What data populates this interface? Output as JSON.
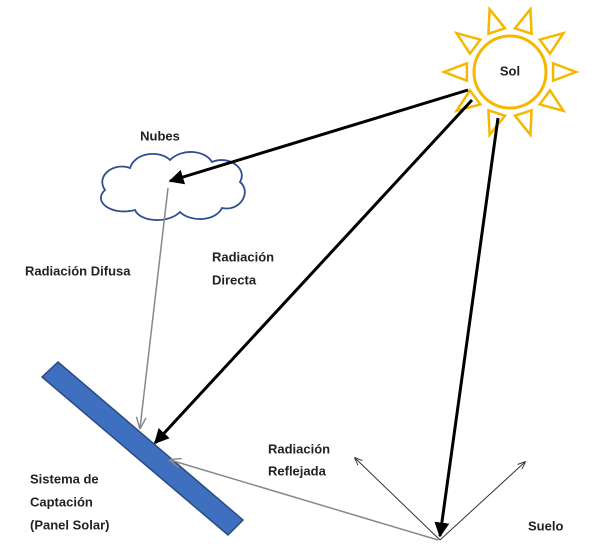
{
  "labels": {
    "sun": "Sol",
    "clouds": "Nubes",
    "diffuse": "Radiación Difusa",
    "direct": [
      "Radiación",
      "Directa"
    ],
    "reflected": [
      "Radiación",
      "Reflejada"
    ],
    "system": [
      "Sistema de",
      "Captación",
      "(Panel Solar)"
    ],
    "ground": "Suelo"
  }
}
